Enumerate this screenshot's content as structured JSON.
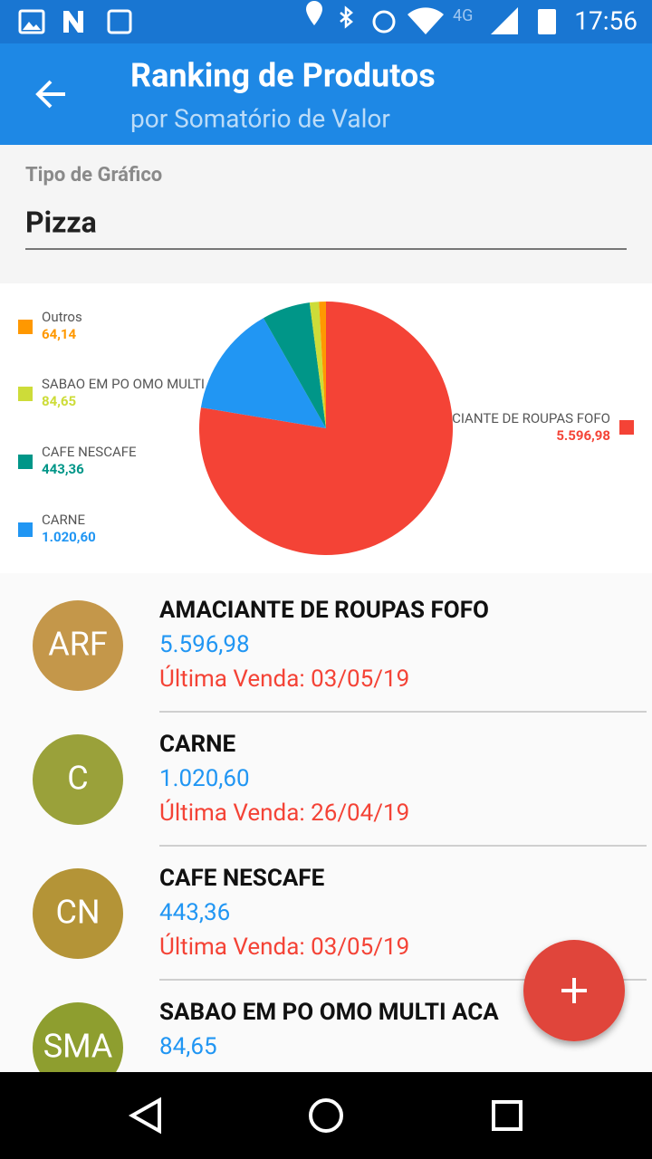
{
  "status_bar": {
    "network": "4G",
    "time": "17:56"
  },
  "app_bar": {
    "title": "Ranking de Produtos",
    "subtitle": "por Somatório de Valor"
  },
  "chart_type_field": {
    "label": "Tipo de Gráfico",
    "value": "Pizza"
  },
  "chart_data": {
    "type": "pie",
    "categories": [
      "AMACIANTE DE ROUPAS FOFO",
      "CARNE",
      "CAFE NESCAFE",
      "SABAO EM PO OMO MULTI ACA",
      "Outros"
    ],
    "values": [
      5596.98,
      1020.6,
      443.36,
      84.65,
      64.14
    ],
    "value_labels": [
      "5.596,98",
      "1.020,60",
      "443,36",
      "84,65",
      "64,14"
    ],
    "colors": [
      "#f44336",
      "#2196f3",
      "#009688",
      "#cddc39",
      "#ff9800"
    ]
  },
  "list": {
    "items": [
      {
        "initials": "ARF",
        "color": "#c4974a",
        "name": "AMACIANTE DE ROUPAS FOFO",
        "value": "5.596,98",
        "last_sale": "Última Venda: 03/05/19"
      },
      {
        "initials": "C",
        "color": "#9aa13a",
        "name": "CARNE",
        "value": "1.020,60",
        "last_sale": "Última Venda: 26/04/19"
      },
      {
        "initials": "CN",
        "color": "#b49437",
        "name": "CAFE NESCAFE",
        "value": "443,36",
        "last_sale": "Última Venda: 03/05/19"
      },
      {
        "initials": "SMA",
        "color": "#8e9e2f",
        "name": "SABAO EM PO OMO MULTI ACA",
        "value": "84,65"
      }
    ]
  }
}
